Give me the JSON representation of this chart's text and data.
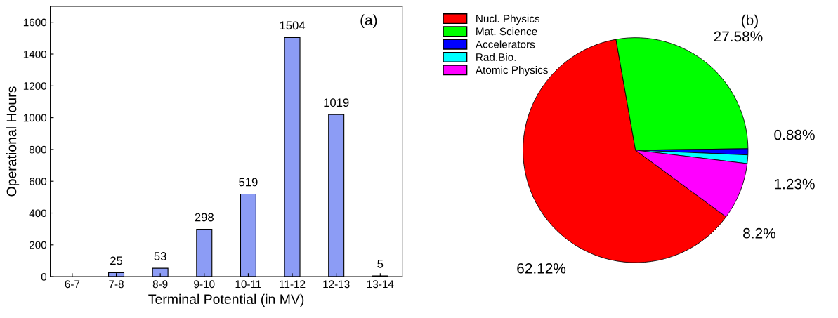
{
  "chart_data": [
    {
      "type": "bar",
      "xlabel": "Terminal Potential (in MV)",
      "ylabel": "Operational Hours",
      "categories": [
        "6-7",
        "7-8",
        "8-9",
        "9-10",
        "10-11",
        "11-12",
        "12-13",
        "13-14"
      ],
      "values": [
        null,
        25,
        53,
        298,
        519,
        1504,
        1019,
        5
      ],
      "color": "#8c9cf5",
      "ylim": [
        0,
        1700
      ],
      "yticks": [
        0,
        200,
        400,
        600,
        800,
        1000,
        1200,
        1400,
        1600
      ],
      "data_labels": true,
      "annotations": [
        "(a)"
      ]
    },
    {
      "type": "pie",
      "categories": [
        "Nucl. Physics",
        "Mat. Science",
        "Accelerators",
        "Rad.Bio.",
        "Atomic Physics"
      ],
      "values": [
        62.12,
        27.58,
        0.88,
        1.23,
        8.2
      ],
      "colors": [
        "#ff0000",
        "#00ff00",
        "#0000ff",
        "#00ffff",
        "#ff00ff"
      ],
      "value_labels": [
        "62.12%",
        "27.58%",
        "0.88%",
        "1.23%",
        "8.2%"
      ],
      "legend": "top left",
      "annotations": [
        "(b)"
      ]
    }
  ]
}
